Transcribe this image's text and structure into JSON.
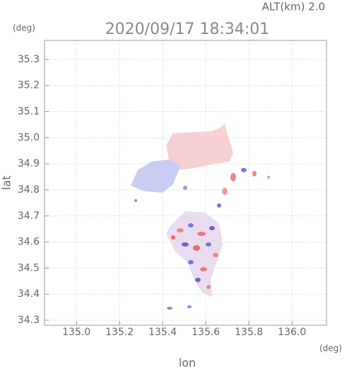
{
  "chart_data": {
    "type": "map",
    "title": "2020/09/17 18:34:01",
    "subtitle": "ALT(km) 2.0",
    "x_label": "lon",
    "y_label": "lat",
    "x_unit": "(deg)",
    "y_unit": "(deg)",
    "xlim": [
      134.852,
      136.16
    ],
    "ylim": [
      34.281,
      35.373
    ],
    "xticks": [
      {
        "value": 135,
        "label": "135.0"
      },
      135.2,
      135.4,
      135.6,
      135.8,
      {
        "value": 136,
        "label": "136.0"
      }
    ],
    "yticks": [
      34.3,
      34.4,
      34.5,
      34.6,
      34.7,
      34.8,
      34.9,
      {
        "value": 35,
        "label": "35.0"
      },
      35.1,
      35.2,
      35.3
    ],
    "grid": true
  }
}
